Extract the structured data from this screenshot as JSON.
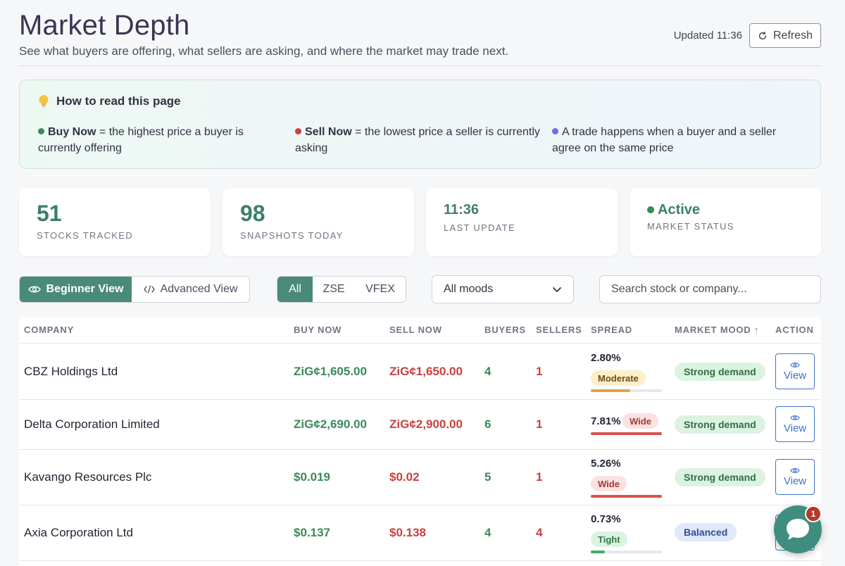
{
  "header": {
    "title": "Market Depth",
    "subtitle": "See what buyers are offering, what sellers are asking, and where the market may trade next.",
    "updated": "Updated 11:36",
    "refresh_label": "Refresh"
  },
  "howto": {
    "title": "How to read this page",
    "items": [
      {
        "strong": "Buy Now",
        "text": " = the highest price a buyer is currently offering",
        "color": "#3b8a5a"
      },
      {
        "strong": "Sell Now",
        "text": " = the lowest price a seller is currently asking",
        "color": "#c9403f"
      },
      {
        "strong": "",
        "text": "A trade happens when a buyer and a seller agree on the same price",
        "color": "#6a6ee8"
      }
    ]
  },
  "stats": [
    {
      "value": "51",
      "label": "Stocks Tracked"
    },
    {
      "value": "98",
      "label": "Snapshots Today"
    },
    {
      "value": "11:36",
      "label": "Last Update"
    },
    {
      "value": "Active",
      "label": "Market Status",
      "dot_color": "#3b8a5a"
    }
  ],
  "controls": {
    "beginner_label": "Beginner View",
    "advanced_label": "Advanced View",
    "exchanges": [
      "All",
      "ZSE",
      "VFEX"
    ],
    "mood_selected": "All moods",
    "search_placeholder": "Search stock or company..."
  },
  "table": {
    "headers": {
      "company": "COMPANY",
      "buy": "BUY NOW",
      "sell": "SELL NOW",
      "buyers": "BUYERS",
      "sellers": "SELLERS",
      "spread": "SPREAD",
      "mood": "MARKET MOOD ↑",
      "action": "ACTION"
    },
    "view_label": "View",
    "rows": [
      {
        "company": "CBZ Holdings Ltd",
        "buy": "ZiG¢1,605.00",
        "sell": "ZiG¢1,650.00",
        "buyers": "4",
        "sellers": "1",
        "spread": "2.80%",
        "spread_label": "Moderate",
        "spread_level": 0.55,
        "spread_color": "#e0a63a",
        "mood": "Strong demand"
      },
      {
        "company": "Delta Corporation Limited",
        "buy": "ZiG¢2,690.00",
        "sell": "ZiG¢2,900.00",
        "buyers": "6",
        "sellers": "1",
        "spread": "7.81%",
        "spread_label": "Wide",
        "spread_level": 1.0,
        "spread_color": "#d9534f",
        "mood": "Strong demand"
      },
      {
        "company": "Kavango Resources Plc",
        "buy": "$0.019",
        "sell": "$0.02",
        "buyers": "5",
        "sellers": "1",
        "spread": "5.26%",
        "spread_label": "Wide",
        "spread_level": 1.0,
        "spread_color": "#d9534f",
        "mood": "Strong demand"
      },
      {
        "company": "Axia Corporation Ltd",
        "buy": "$0.137",
        "sell": "$0.138",
        "buyers": "4",
        "sellers": "4",
        "spread": "0.73%",
        "spread_label": "Tight",
        "spread_level": 0.2,
        "spread_color": "#3fae5e",
        "mood": "Balanced"
      }
    ]
  },
  "chat": {
    "badge": "1"
  }
}
